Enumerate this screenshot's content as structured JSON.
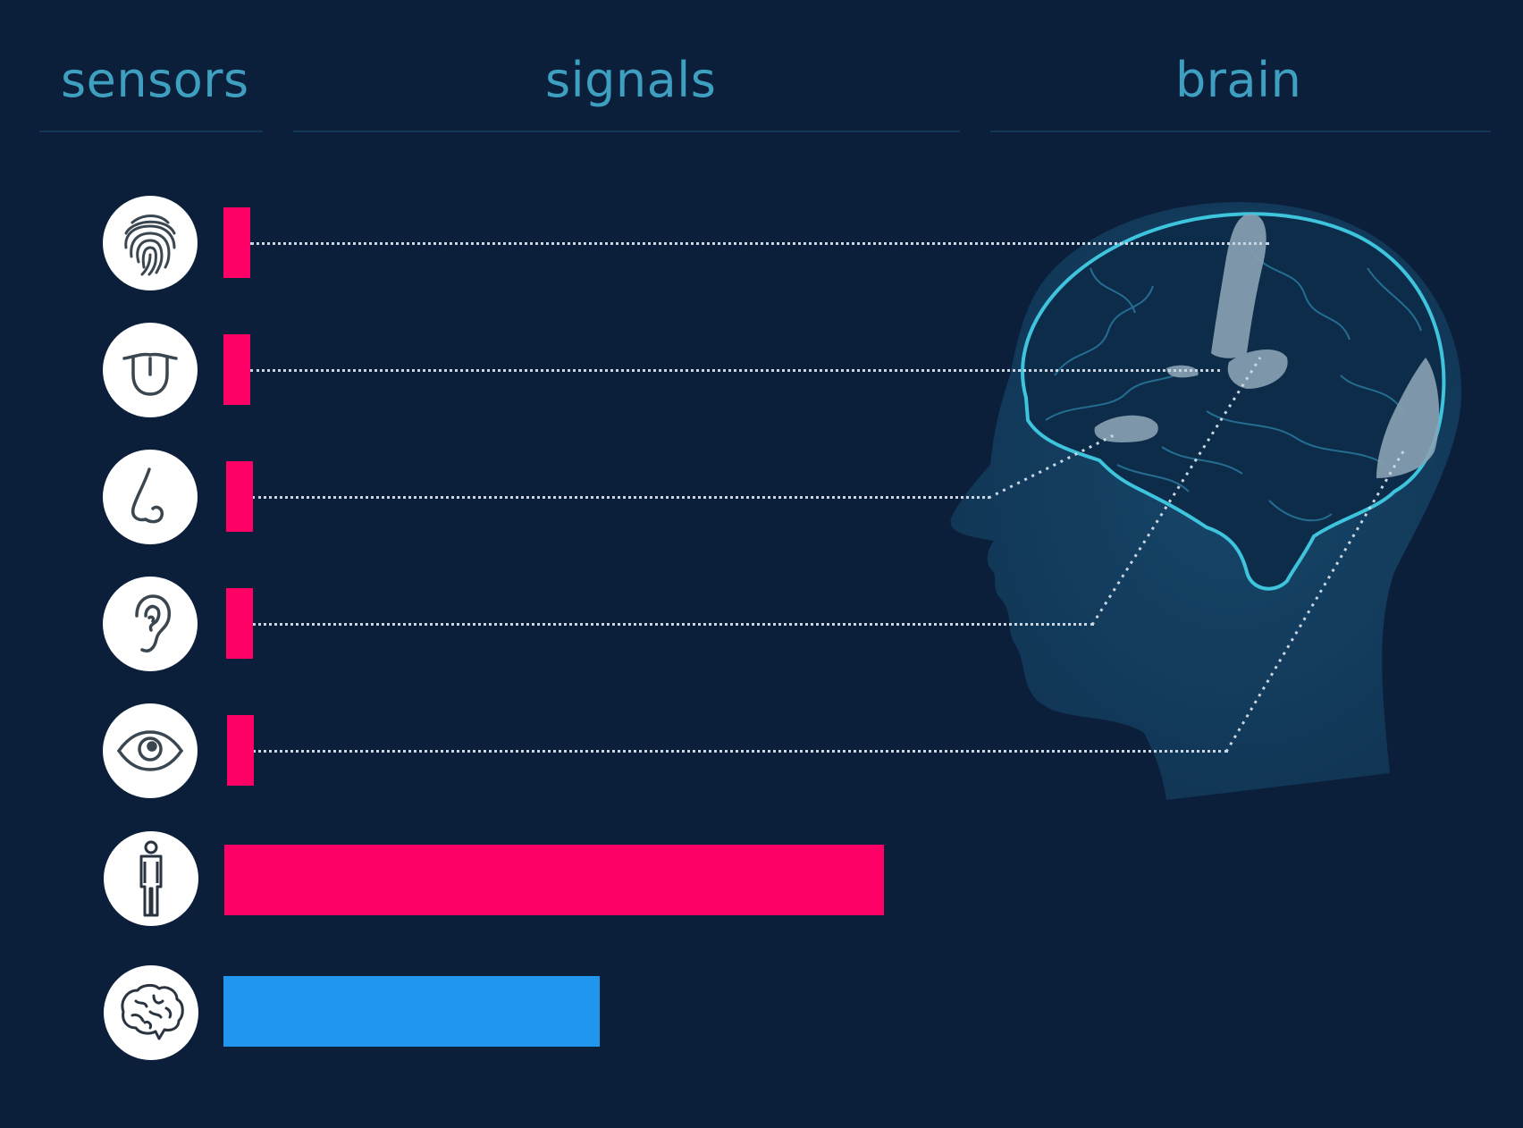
{
  "headers": {
    "sensors": "sensors",
    "signals": "signals",
    "brain": "brain"
  },
  "rows": [
    {
      "name": "touch",
      "icon": "fingerprint-icon",
      "signal_level": 0.04,
      "color": "#ff0066"
    },
    {
      "name": "taste",
      "icon": "tongue-icon",
      "signal_level": 0.04,
      "color": "#ff0066"
    },
    {
      "name": "smell",
      "icon": "nose-icon",
      "signal_level": 0.04,
      "color": "#ff0066"
    },
    {
      "name": "hearing",
      "icon": "ear-icon",
      "signal_level": 0.04,
      "color": "#ff0066"
    },
    {
      "name": "sight",
      "icon": "eye-icon",
      "signal_level": 0.04,
      "color": "#ff0066"
    },
    {
      "name": "body",
      "icon": "person-icon",
      "signal_level": 1.0,
      "color": "#ff0066"
    },
    {
      "name": "brain",
      "icon": "brain-icon",
      "signal_level": 0.57,
      "color": "#2196ee"
    }
  ],
  "colors": {
    "background": "#0b1f3a",
    "header_text": "#3f9fc0",
    "brain_outline": "#3ec4dc",
    "head_silhouette": "#123a5a"
  }
}
